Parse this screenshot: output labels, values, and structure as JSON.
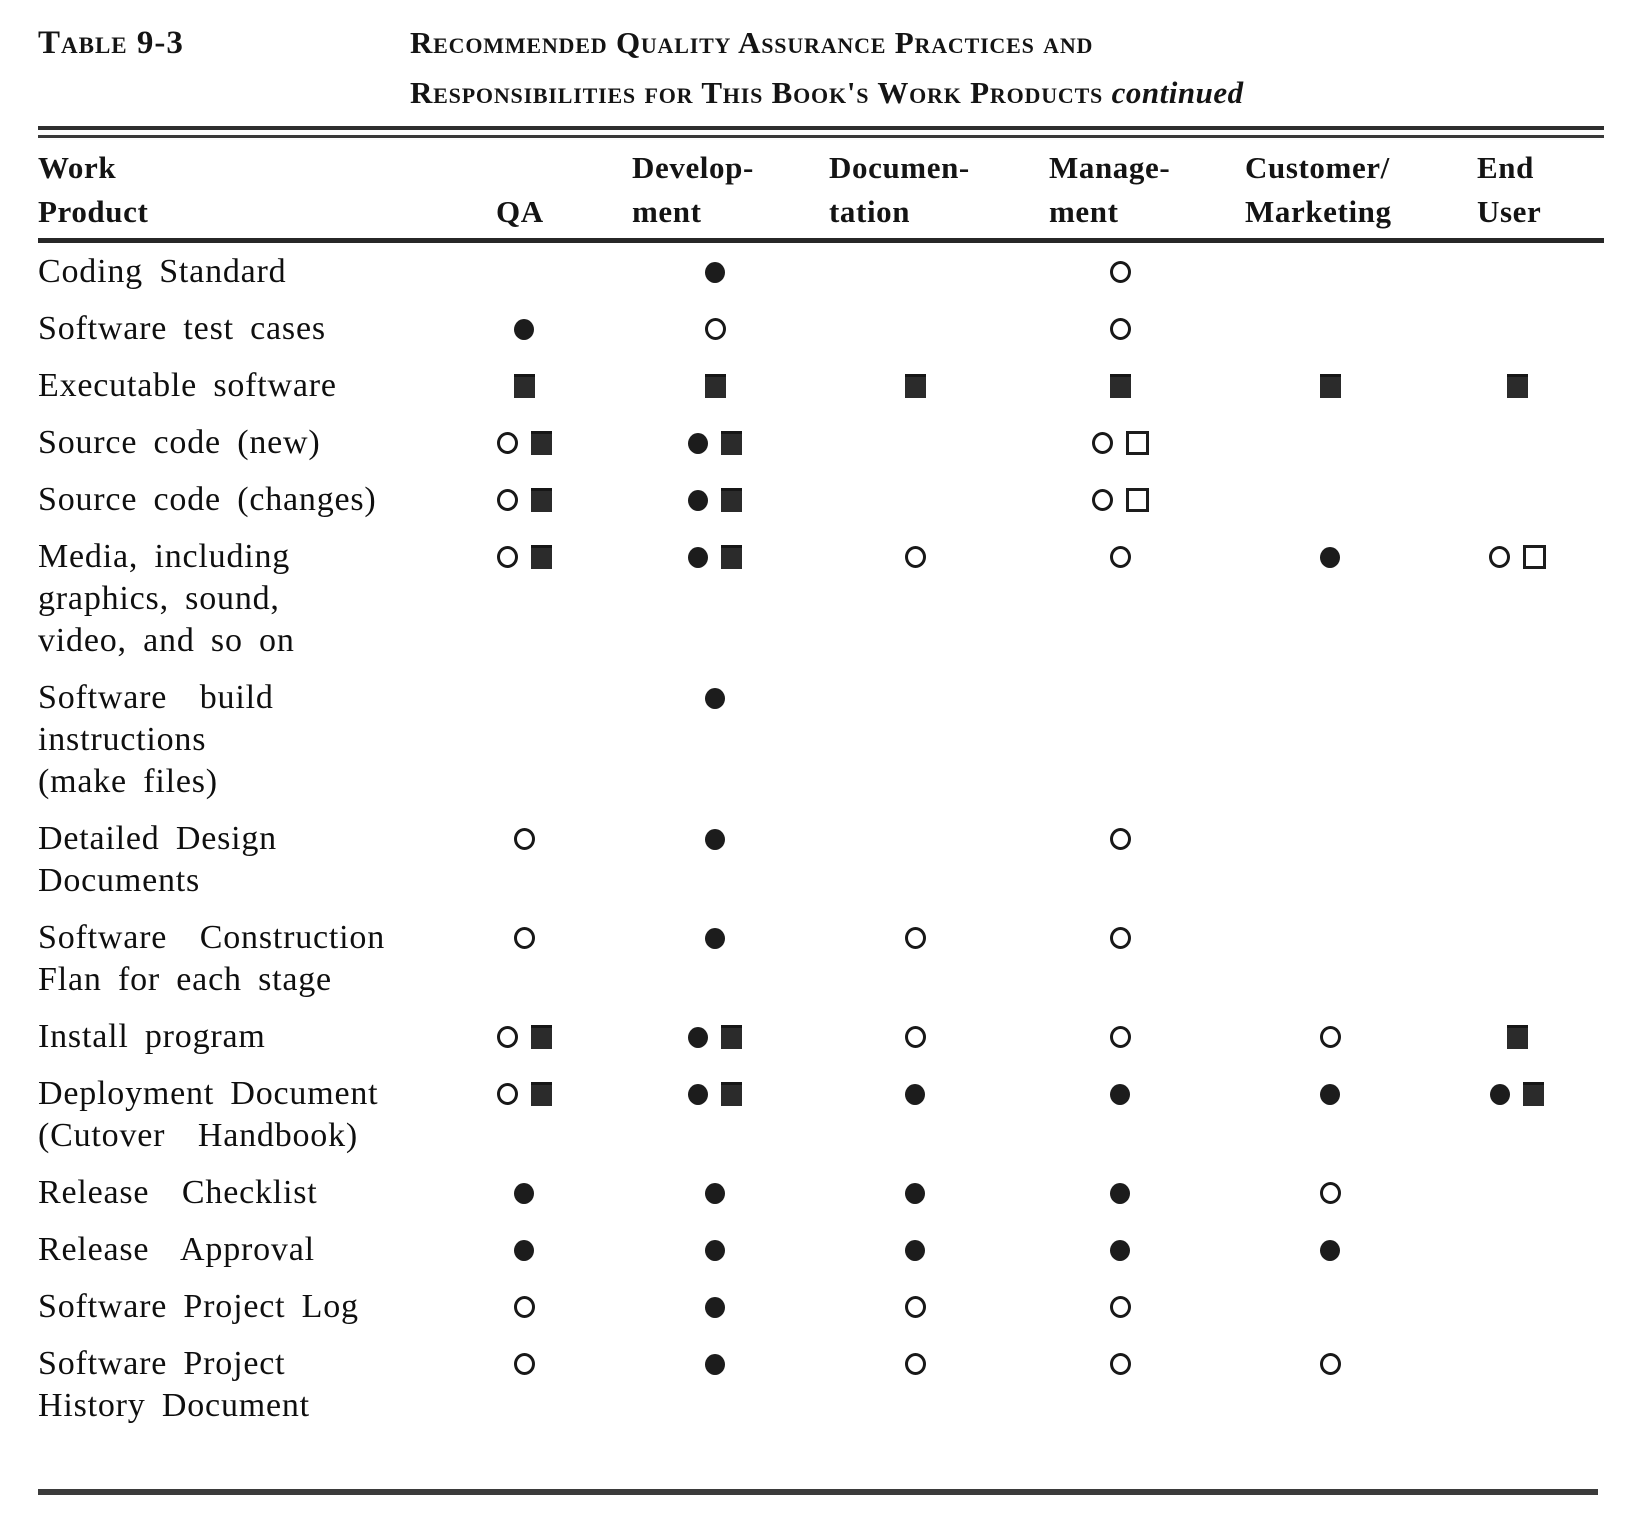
{
  "header": {
    "table_label": "Table 9-3",
    "title_line1": "Recommended Quality Assurance Practices and",
    "title_line2": "Responsibilities for This Book's Work Products",
    "title_continued": "continued"
  },
  "table": {
    "columns": [
      {
        "id": "work-product",
        "lines": [
          "Work",
          "Product"
        ]
      },
      {
        "id": "qa",
        "lines": [
          "",
          "QA"
        ]
      },
      {
        "id": "development",
        "lines": [
          "Develop-",
          "ment"
        ]
      },
      {
        "id": "documentation",
        "lines": [
          "Documen-",
          "tation"
        ]
      },
      {
        "id": "management",
        "lines": [
          "Manage-",
          "ment"
        ]
      },
      {
        "id": "customer-marketing",
        "lines": [
          "Customer/",
          "Marketing"
        ]
      },
      {
        "id": "end-user",
        "lines": [
          "End",
          "User"
        ]
      }
    ],
    "symbol_names": [
      "filled-circle",
      "open-circle",
      "filled-square",
      "open-square"
    ],
    "rows": [
      {
        "label_lines": [
          "Coding Standard"
        ],
        "cells": [
          [],
          [
            "filled-circle"
          ],
          [],
          [
            "open-circle"
          ],
          [],
          []
        ]
      },
      {
        "label_lines": [
          "Software test cases"
        ],
        "cells": [
          [
            "filled-circle"
          ],
          [
            "open-circle"
          ],
          [],
          [
            "open-circle"
          ],
          [],
          []
        ]
      },
      {
        "label_lines": [
          "Executable software"
        ],
        "cells": [
          [
            "filled-square"
          ],
          [
            "filled-square"
          ],
          [
            "filled-square"
          ],
          [
            "filled-square"
          ],
          [
            "filled-square"
          ],
          [
            "filled-square"
          ]
        ]
      },
      {
        "label_lines": [
          "Source code (new)"
        ],
        "cells": [
          [
            "open-circle",
            "filled-square"
          ],
          [
            "filled-circle",
            "filled-square"
          ],
          [],
          [
            "open-circle",
            "open-square"
          ],
          [],
          []
        ]
      },
      {
        "label_lines": [
          "Source code (changes)"
        ],
        "cells": [
          [
            "open-circle",
            "filled-square"
          ],
          [
            "filled-circle",
            "filled-square"
          ],
          [],
          [
            "open-circle",
            "open-square"
          ],
          [],
          []
        ]
      },
      {
        "label_lines": [
          "Media, including",
          "graphics, sound,",
          "video, and so on"
        ],
        "cells": [
          [
            "open-circle",
            "filled-square"
          ],
          [
            "filled-circle",
            "filled-square"
          ],
          [
            "open-circle"
          ],
          [
            "open-circle"
          ],
          [
            "filled-circle"
          ],
          [
            "open-circle",
            "open-square"
          ]
        ]
      },
      {
        "label_lines": [
          "Software  build",
          "instructions",
          "(make files)"
        ],
        "cells": [
          [],
          [
            "filled-circle"
          ],
          [],
          [],
          [],
          []
        ]
      },
      {
        "label_lines": [
          "Detailed Design",
          "Documents"
        ],
        "cells": [
          [
            "open-circle"
          ],
          [
            "filled-circle"
          ],
          [],
          [
            "open-circle"
          ],
          [],
          []
        ]
      },
      {
        "label_lines": [
          "Software  Construction",
          "Flan for each stage"
        ],
        "cells": [
          [
            "open-circle"
          ],
          [
            "filled-circle"
          ],
          [
            "open-circle"
          ],
          [
            "open-circle"
          ],
          [],
          []
        ]
      },
      {
        "label_lines": [
          "Install program"
        ],
        "cells": [
          [
            "open-circle",
            "filled-square"
          ],
          [
            "filled-circle",
            "filled-square"
          ],
          [
            "open-circle"
          ],
          [
            "open-circle"
          ],
          [
            "open-circle"
          ],
          [
            "filled-square"
          ]
        ]
      },
      {
        "label_lines": [
          "Deployment Document",
          "(Cutover  Handbook)"
        ],
        "cells": [
          [
            "open-circle",
            "filled-square"
          ],
          [
            "filled-circle",
            "filled-square"
          ],
          [
            "filled-circle"
          ],
          [
            "filled-circle"
          ],
          [
            "filled-circle"
          ],
          [
            "filled-circle",
            "filled-square"
          ]
        ]
      },
      {
        "label_lines": [
          "Release  Checklist"
        ],
        "cells": [
          [
            "filled-circle"
          ],
          [
            "filled-circle"
          ],
          [
            "filled-circle"
          ],
          [
            "filled-circle"
          ],
          [
            "open-circle"
          ],
          []
        ]
      },
      {
        "label_lines": [
          "Release  Approval"
        ],
        "cells": [
          [
            "filled-circle"
          ],
          [
            "filled-circle"
          ],
          [
            "filled-circle"
          ],
          [
            "filled-circle"
          ],
          [
            "filled-circle"
          ],
          []
        ]
      },
      {
        "label_lines": [
          "Software Project Log"
        ],
        "cells": [
          [
            "open-circle"
          ],
          [
            "filled-circle"
          ],
          [
            "open-circle"
          ],
          [
            "open-circle"
          ],
          [],
          []
        ]
      },
      {
        "label_lines": [
          "Software Project",
          "History Document"
        ],
        "cells": [
          [
            "open-circle"
          ],
          [
            "filled-circle"
          ],
          [
            "open-circle"
          ],
          [
            "open-circle"
          ],
          [
            "open-circle"
          ],
          []
        ]
      }
    ]
  },
  "colors": {
    "ink": "#141414",
    "rule": "#2e2e2e",
    "background": "#ffffff"
  }
}
